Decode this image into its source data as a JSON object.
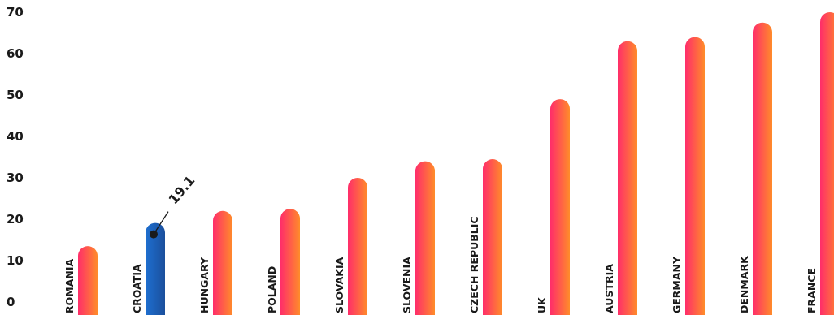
{
  "chart_data": {
    "type": "bar",
    "categories": [
      "ROMANIA",
      "CROATIA",
      "HUNGARY",
      "POLAND",
      "SLOVAKIA",
      "SLOVENIA",
      "CZECH REPUBLIC",
      "UK",
      "AUSTRIA",
      "GERMANY",
      "DENMARK",
      "FRANCE"
    ],
    "values": [
      13.5,
      19.1,
      22,
      22.5,
      30,
      34,
      34.5,
      49,
      63,
      64,
      67.5,
      70
    ],
    "highlight": "CROATIA",
    "annotation": {
      "category": "CROATIA",
      "text": "19.1"
    },
    "yticks": [
      "0",
      "10",
      "20",
      "30",
      "40",
      "50",
      "60",
      "70"
    ],
    "ylim": [
      0,
      70
    ],
    "grid": false,
    "colors": {
      "bar_top": "#ff2d6a",
      "bar_bottom": "#ff8c2a",
      "highlight_top": "#1e6fd0",
      "highlight_bottom": "#1b4f9c",
      "text": "#1a1a1a"
    }
  }
}
